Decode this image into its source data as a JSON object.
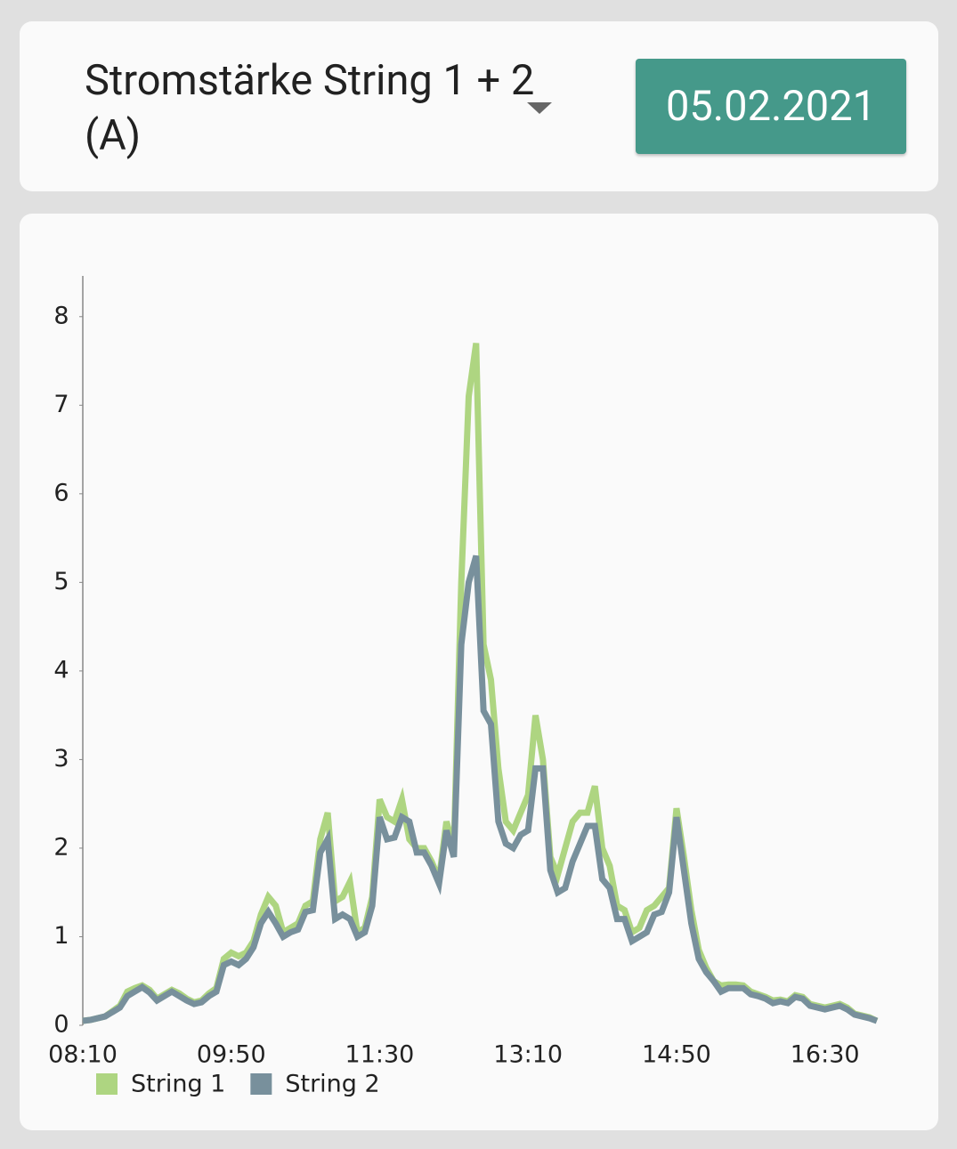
{
  "header": {
    "title": "Stromstärke String 1 + 2 (A)",
    "date": "05.02.2021"
  },
  "chart_data": {
    "type": "line",
    "categories": [
      "08:10",
      null,
      null,
      null,
      null,
      null,
      null,
      null,
      null,
      null,
      null,
      null,
      null,
      null,
      null,
      null,
      null,
      null,
      null,
      null,
      "09:50",
      null,
      null,
      null,
      null,
      null,
      null,
      null,
      null,
      null,
      null,
      null,
      null,
      null,
      null,
      null,
      null,
      null,
      null,
      null,
      "11:30",
      null,
      null,
      null,
      null,
      null,
      null,
      null,
      null,
      null,
      null,
      null,
      null,
      null,
      null,
      null,
      null,
      null,
      null,
      null,
      "13:10",
      null,
      null,
      null,
      null,
      null,
      null,
      null,
      null,
      null,
      null,
      null,
      null,
      null,
      null,
      null,
      null,
      null,
      null,
      null,
      "14:50",
      null,
      null,
      null,
      null,
      null,
      null,
      null,
      null,
      null,
      null,
      null,
      null,
      null,
      null,
      null,
      null,
      null,
      null,
      null,
      "16:30",
      null,
      null,
      null,
      null,
      null,
      null,
      null
    ],
    "series": [
      {
        "name": "String 1",
        "color": "#aed581",
        "values": [
          0.05,
          0.06,
          0.08,
          0.1,
          0.16,
          0.22,
          0.38,
          0.42,
          0.45,
          0.4,
          0.3,
          0.35,
          0.4,
          0.36,
          0.3,
          0.26,
          0.28,
          0.36,
          0.42,
          0.75,
          0.82,
          0.78,
          0.82,
          0.95,
          1.25,
          1.45,
          1.35,
          1.05,
          1.1,
          1.15,
          1.35,
          1.4,
          2.1,
          2.4,
          1.4,
          1.45,
          1.62,
          1.05,
          1.1,
          1.45,
          2.55,
          2.35,
          2.3,
          2.55,
          2.1,
          2.0,
          2.0,
          1.85,
          1.65,
          2.3,
          2.0,
          5.0,
          7.1,
          7.7,
          4.3,
          3.9,
          2.9,
          2.3,
          2.2,
          2.4,
          2.6,
          3.5,
          3.0,
          1.9,
          1.7,
          2.0,
          2.3,
          2.4,
          2.4,
          2.7,
          2.0,
          1.8,
          1.35,
          1.3,
          1.05,
          1.1,
          1.3,
          1.35,
          1.45,
          1.55,
          2.45,
          1.9,
          1.3,
          0.85,
          0.65,
          0.5,
          0.45,
          0.46,
          0.46,
          0.45,
          0.38,
          0.35,
          0.32,
          0.28,
          0.29,
          0.27,
          0.34,
          0.32,
          0.24,
          0.22,
          0.2,
          0.22,
          0.24,
          0.2,
          0.13,
          0.11,
          0.09,
          0.05
        ]
      },
      {
        "name": "String 2",
        "color": "#78909c",
        "values": [
          0.05,
          0.06,
          0.08,
          0.1,
          0.15,
          0.2,
          0.33,
          0.38,
          0.43,
          0.37,
          0.28,
          0.33,
          0.38,
          0.33,
          0.28,
          0.24,
          0.26,
          0.33,
          0.38,
          0.68,
          0.72,
          0.68,
          0.75,
          0.88,
          1.15,
          1.28,
          1.15,
          1.0,
          1.05,
          1.08,
          1.28,
          1.3,
          1.95,
          2.1,
          1.2,
          1.25,
          1.2,
          1.0,
          1.05,
          1.35,
          2.35,
          2.1,
          2.12,
          2.35,
          2.3,
          1.95,
          1.95,
          1.8,
          1.6,
          2.2,
          1.9,
          4.3,
          5.0,
          5.3,
          3.55,
          3.4,
          2.3,
          2.05,
          2.0,
          2.15,
          2.2,
          2.9,
          2.9,
          1.75,
          1.5,
          1.55,
          1.85,
          2.05,
          2.25,
          2.25,
          1.65,
          1.55,
          1.2,
          1.2,
          0.95,
          1.0,
          1.05,
          1.25,
          1.28,
          1.5,
          2.35,
          1.75,
          1.15,
          0.75,
          0.6,
          0.5,
          0.38,
          0.42,
          0.42,
          0.42,
          0.35,
          0.33,
          0.3,
          0.25,
          0.27,
          0.25,
          0.32,
          0.3,
          0.22,
          0.2,
          0.18,
          0.2,
          0.22,
          0.18,
          0.12,
          0.1,
          0.08,
          0.05
        ]
      }
    ],
    "ylim": [
      0,
      8.46
    ],
    "yticks": [
      0,
      1,
      2,
      3,
      4,
      5,
      6,
      7,
      8
    ],
    "grid": false,
    "legend": "bottom-left"
  }
}
